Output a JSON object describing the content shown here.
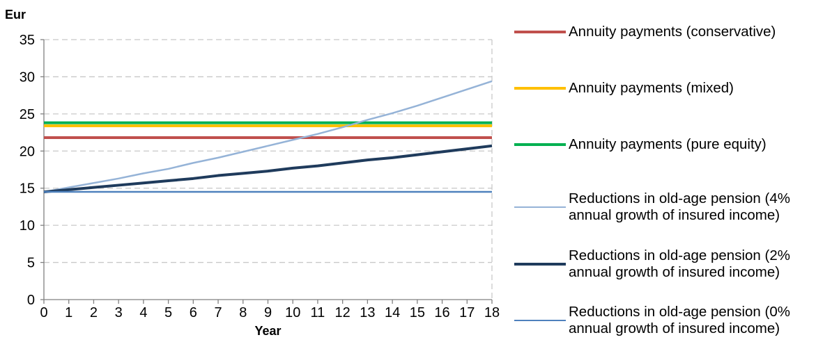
{
  "chart_data": {
    "type": "line",
    "ylabel": "Eur",
    "xlabel": "Year",
    "x": [
      0,
      1,
      2,
      3,
      4,
      5,
      6,
      7,
      8,
      9,
      10,
      11,
      12,
      13,
      14,
      15,
      16,
      17,
      18
    ],
    "ylim": [
      0,
      35
    ],
    "yticks": [
      0,
      5,
      10,
      15,
      20,
      25,
      30,
      35
    ],
    "grid": "horizontal dashed",
    "legend_position": "right",
    "series": [
      {
        "name": "Annuity payments (conservative)",
        "color": "#C0504D",
        "width": 4,
        "values": [
          21.8,
          21.8,
          21.8,
          21.8,
          21.8,
          21.8,
          21.8,
          21.8,
          21.8,
          21.8,
          21.8,
          21.8,
          21.8,
          21.8,
          21.8,
          21.8,
          21.8,
          21.8,
          21.8
        ]
      },
      {
        "name": "Annuity payments (mixed)",
        "color": "#FFC000",
        "width": 4,
        "values": [
          23.4,
          23.4,
          23.4,
          23.4,
          23.4,
          23.4,
          23.4,
          23.4,
          23.4,
          23.4,
          23.4,
          23.4,
          23.4,
          23.4,
          23.4,
          23.4,
          23.4,
          23.4,
          23.4
        ]
      },
      {
        "name": "Annuity payments (pure equity)",
        "color": "#00B050",
        "width": 4,
        "values": [
          23.8,
          23.8,
          23.8,
          23.8,
          23.8,
          23.8,
          23.8,
          23.8,
          23.8,
          23.8,
          23.8,
          23.8,
          23.8,
          23.8,
          23.8,
          23.8,
          23.8,
          23.8,
          23.8
        ]
      },
      {
        "name": "Reductions in old-age pension (4%\nannual growth of insured income)",
        "color": "#95B3D7",
        "width": 2.5,
        "values": [
          14.5,
          15.1,
          15.7,
          16.3,
          17.0,
          17.6,
          18.4,
          19.1,
          19.9,
          20.7,
          21.5,
          22.3,
          23.2,
          24.2,
          25.1,
          26.1,
          27.2,
          28.3,
          29.4
        ]
      },
      {
        "name": "Reductions in old-age pension (2%\nannual growth of insured income)",
        "color": "#1F3B5C",
        "width": 4,
        "values": [
          14.5,
          14.8,
          15.1,
          15.4,
          15.7,
          16.0,
          16.3,
          16.7,
          17.0,
          17.3,
          17.7,
          18.0,
          18.4,
          18.8,
          19.1,
          19.5,
          19.9,
          20.3,
          20.7
        ]
      },
      {
        "name": "Reductions in old-age pension (0%\nannual growth of insured income)",
        "color": "#4F81BD",
        "width": 2.5,
        "values": [
          14.5,
          14.5,
          14.5,
          14.5,
          14.5,
          14.5,
          14.5,
          14.5,
          14.5,
          14.5,
          14.5,
          14.5,
          14.5,
          14.5,
          14.5,
          14.5,
          14.5,
          14.5,
          14.5
        ]
      }
    ]
  }
}
